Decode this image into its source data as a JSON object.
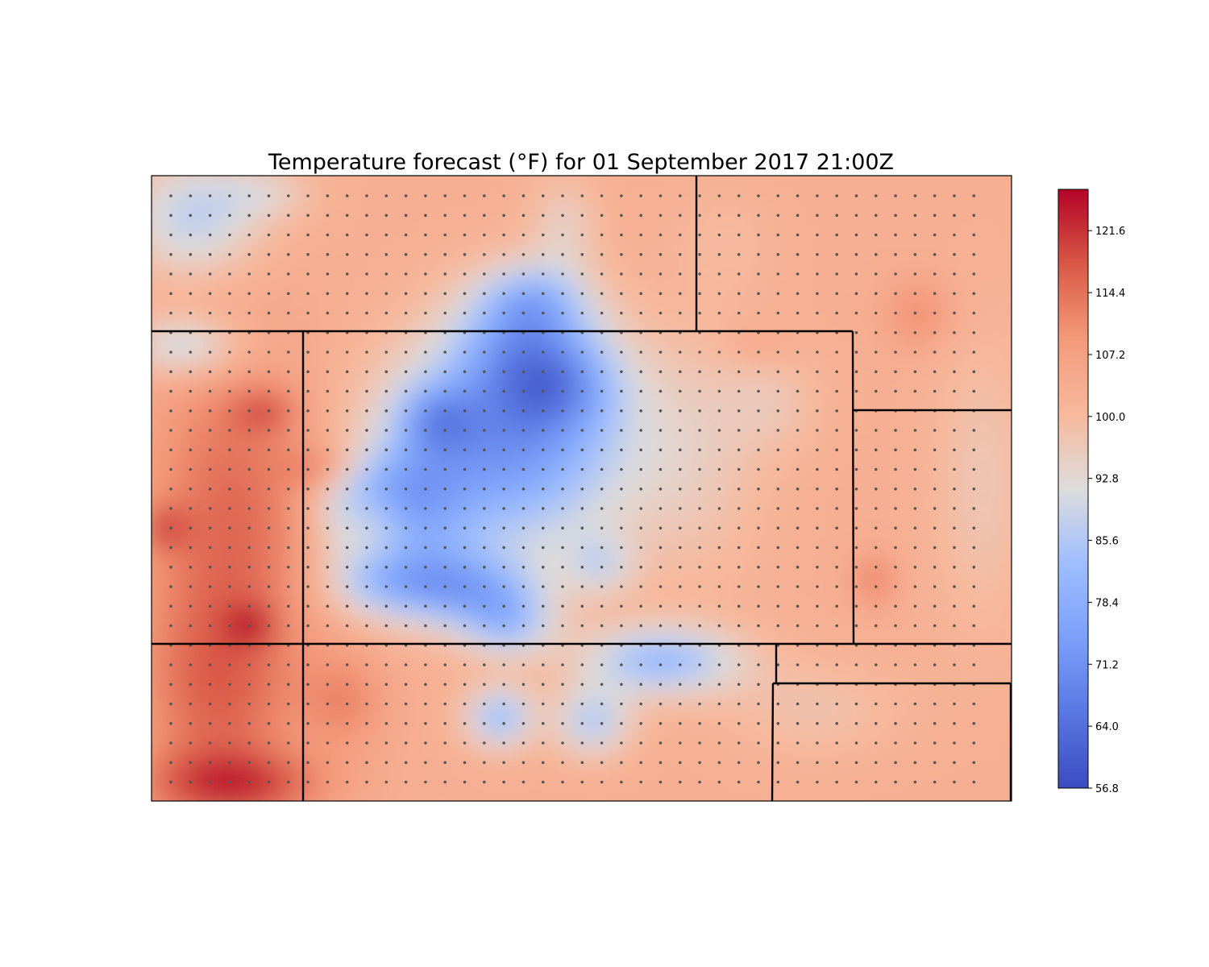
{
  "chart_data": {
    "type": "heatmap",
    "title": "Temperature forecast (°F) for 01 September 2017 21:00Z",
    "units": "°F",
    "colormap": "coolwarm",
    "colorbar": {
      "min": 56.8,
      "max": 126.4,
      "ticks": [
        "121.6",
        "114.4",
        "107.2",
        "100.0",
        "92.8",
        "85.6",
        "78.4",
        "71.2",
        "64.0",
        "56.8"
      ],
      "tick_values": [
        121.6,
        114.4,
        107.2,
        100.0,
        92.8,
        85.6,
        78.4,
        71.2,
        64.0,
        56.8
      ],
      "stops": [
        {
          "value": 0.0,
          "color": "#3b4cc0"
        },
        {
          "value": 0.125,
          "color": "#5977e3"
        },
        {
          "value": 0.25,
          "color": "#7b9ff9"
        },
        {
          "value": 0.375,
          "color": "#9ebeff"
        },
        {
          "value": 0.5,
          "color": "#dddcdc"
        },
        {
          "value": 0.625,
          "color": "#f7b89c"
        },
        {
          "value": 0.75,
          "color": "#f49a7b"
        },
        {
          "value": 0.875,
          "color": "#d95847"
        },
        {
          "value": 1.0,
          "color": "#b40426"
        }
      ]
    },
    "station_markers": "grid of gray dots",
    "grid": false,
    "legend": "colorbar right"
  },
  "colors": {
    "boundary": "#000000",
    "station_dot": "#555555",
    "background": "#ffffff"
  }
}
